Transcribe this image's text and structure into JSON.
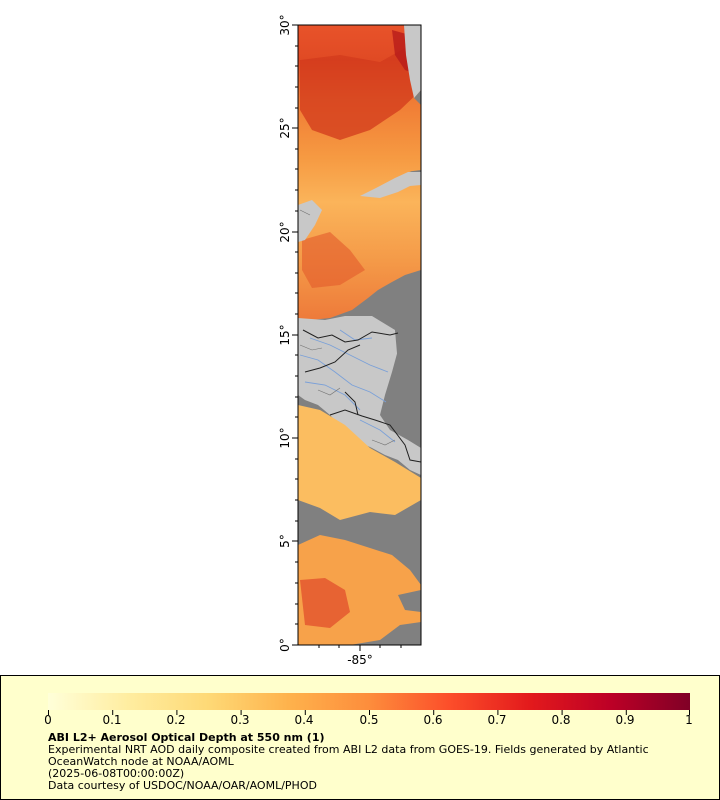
{
  "map": {
    "lat_labels": [
      "0°",
      "5°",
      "10°",
      "15°",
      "20°",
      "25°",
      "30°"
    ],
    "lon_labels": [
      "-85°"
    ],
    "colors": {
      "ocean_nodata": "#808080",
      "land": "#c8c8c8",
      "rivers": "#7aa0d8",
      "borders": "#202020"
    }
  },
  "legend": {
    "title": "ABI L2+ Aerosol Optical Depth at 550 nm (1)",
    "ticks": [
      "0",
      "0.1",
      "0.2",
      "0.3",
      "0.4",
      "0.5",
      "0.6",
      "0.7",
      "0.8",
      "0.9",
      "1"
    ],
    "colormap": [
      "#ffffd9",
      "#ffeda0",
      "#fed976",
      "#feb24c",
      "#fd8d3c",
      "#fc4e2a",
      "#e31a1c",
      "#bd0026",
      "#800026"
    ],
    "description_line1": "Experimental NRT AOD daily composite created from ABI L2 data from GOES-19. Fields generated by Atlantic",
    "description_line2": "OceanWatch node at NOAA/AOML",
    "timestamp": "(2025-06-08T00:00:00Z)",
    "credit": "Data courtesy of USDOC/NOAA/OAR/AOML/PHOD"
  }
}
